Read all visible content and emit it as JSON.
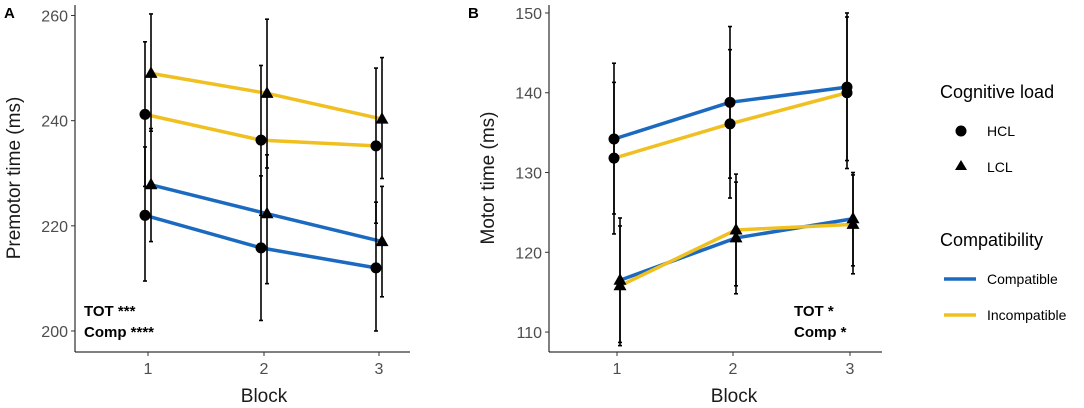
{
  "chart_data": [
    {
      "panel": "A",
      "type": "line",
      "xlabel": "Block",
      "ylabel": "Premotor time (ms)",
      "categories": [
        "1",
        "2",
        "3"
      ],
      "yticks": [
        "200",
        "220",
        "240",
        "260"
      ],
      "ylim": [
        196,
        262
      ],
      "annotations": [
        "TOT ***",
        "Comp ****"
      ],
      "series": [
        {
          "name": "Compatible / HCL",
          "compatibility": "Compatible",
          "load": "HCL",
          "values": [
            222,
            215.8,
            212
          ],
          "err_low": [
            209.5,
            202,
            200
          ],
          "err_high": [
            235,
            229.5,
            224.5
          ]
        },
        {
          "name": "Compatible / LCL",
          "compatibility": "Compatible",
          "load": "LCL",
          "values": [
            227.8,
            222.3,
            217
          ],
          "err_low": [
            217,
            209,
            206.5
          ],
          "err_high": [
            238.5,
            233.5,
            227.5
          ]
        },
        {
          "name": "Incompatible / HCL",
          "compatibility": "Incompatible",
          "load": "HCL",
          "values": [
            241.2,
            236.3,
            235.2
          ],
          "err_low": [
            227.5,
            222,
            220.5
          ],
          "err_high": [
            255,
            250.5,
            250
          ]
        },
        {
          "name": "Incompatible / LCL",
          "compatibility": "Incompatible",
          "load": "LCL",
          "values": [
            249,
            245.2,
            240.3
          ],
          "err_low": [
            238,
            231,
            229
          ],
          "err_high": [
            260.3,
            259.3,
            252
          ]
        }
      ]
    },
    {
      "panel": "B",
      "type": "line",
      "xlabel": "Block",
      "ylabel": "Motor time (ms)",
      "categories": [
        "1",
        "2",
        "3"
      ],
      "yticks": [
        "110",
        "120",
        "130",
        "140",
        "150"
      ],
      "ylim": [
        107.5,
        151
      ],
      "annotations": [
        "TOT *",
        "Comp *"
      ],
      "series": [
        {
          "name": "Compatible / HCL",
          "compatibility": "Compatible",
          "load": "HCL",
          "values": [
            134.2,
            138.8,
            140.7
          ],
          "err_low": [
            124.8,
            129.3,
            131.5
          ],
          "err_high": [
            143.7,
            148.3,
            150
          ]
        },
        {
          "name": "Compatible / LCL",
          "compatibility": "Compatible",
          "load": "LCL",
          "values": [
            116.5,
            121.8,
            124.2
          ],
          "err_low": [
            108.7,
            114.8,
            118.3
          ],
          "err_high": [
            124.3,
            128.8,
            130
          ]
        },
        {
          "name": "Incompatible / HCL",
          "compatibility": "Incompatible",
          "load": "HCL",
          "values": [
            131.8,
            136.1,
            140
          ],
          "err_low": [
            122.3,
            126.8,
            130.5
          ],
          "err_high": [
            141.3,
            145.4,
            149.5
          ]
        },
        {
          "name": "Incompatible / LCL",
          "compatibility": "Incompatible",
          "load": "LCL",
          "values": [
            115.8,
            122.8,
            123.5
          ],
          "err_low": [
            108.3,
            115.8,
            117.3
          ],
          "err_high": [
            123.3,
            129.8,
            129.7
          ]
        }
      ]
    }
  ],
  "legend": {
    "load_title": "Cognitive load",
    "load_items": [
      {
        "label": "HCL",
        "shape": "circle"
      },
      {
        "label": "LCL",
        "shape": "triangle"
      }
    ],
    "compat_title": "Compatibility",
    "compat_items": [
      {
        "label": "Compatible",
        "color": "#1b6ac0"
      },
      {
        "label": "Incompatible",
        "color": "#f0c020"
      }
    ]
  },
  "colors": {
    "Compatible": "#1b6ac0",
    "Incompatible": "#f0c020"
  }
}
